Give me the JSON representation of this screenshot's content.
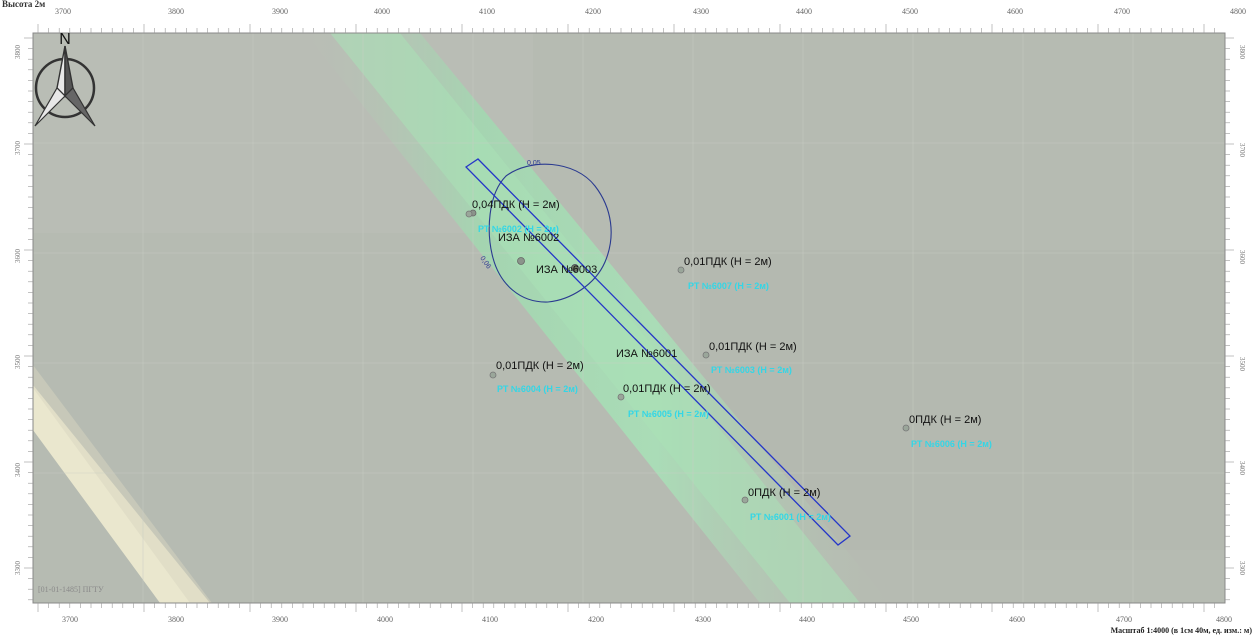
{
  "title": "Высота 2м",
  "stamp": "[01-01-1485] ПГТУ",
  "scale_text": "Масштаб 1:4000 (в 1см 40м, ед. изм.: м)",
  "north_label": "N",
  "colors": {
    "background": "#b5bab1",
    "road_stripe": "#a6e1b4",
    "light_stripe": "#f0ecd0",
    "contour": "#2a3a90",
    "source_rect": "#2536c8",
    "rt_label": "#33d6e6"
  },
  "axes": {
    "x_ticks": [
      "3700",
      "3800",
      "3900",
      "4000",
      "4100",
      "4200",
      "4300",
      "4400",
      "4500",
      "4600",
      "4700",
      "4800"
    ],
    "y_ticks": [
      "3800",
      "3700",
      "3600",
      "3500",
      "3400",
      "3300"
    ]
  },
  "sources": [
    {
      "name": "ИЗА №6002"
    },
    {
      "name": "ИЗА №6003"
    },
    {
      "name": "ИЗА №6001"
    }
  ],
  "contour_labels": [
    "0,05",
    "0,06"
  ],
  "points": [
    {
      "pdk": "0,04ПДК (H = 2м)",
      "rt": "РТ №6002 (H = 2м)"
    },
    {
      "pdk": "0,01ПДК (H = 2м)",
      "rt": "РТ №6007 (H = 2м)"
    },
    {
      "pdk": "0,01ПДК (H = 2м)",
      "rt": "РТ №6003 (H = 2м)"
    },
    {
      "pdk": "0,01ПДК (H = 2м)",
      "rt": "РТ №6004 (H = 2м)"
    },
    {
      "pdk": "0,01ПДК (H = 2м)",
      "rt": "РТ №6005 (H = 2м)"
    },
    {
      "pdk": "0ПДК (H = 2м)",
      "rt": "РТ №6006 (H = 2м)"
    },
    {
      "pdk": "0ПДК (H = 2м)",
      "rt": "РТ №6001 (H = 2м)"
    }
  ]
}
